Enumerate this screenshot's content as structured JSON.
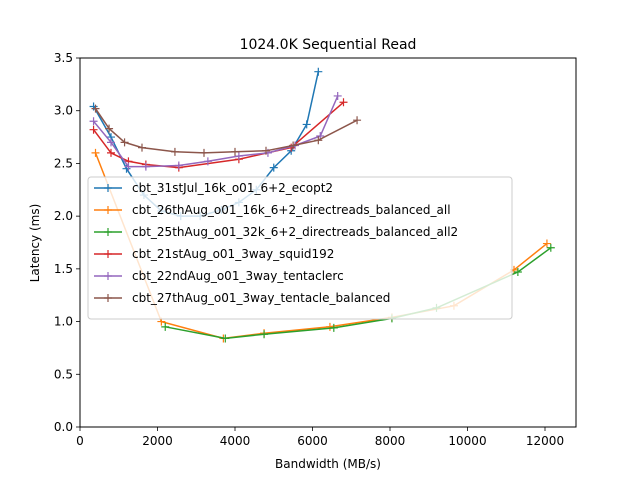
{
  "chart_data": {
    "type": "line",
    "title": "1024.0K  Sequential Read",
    "xlabel": "Bandwidth (MB/s)",
    "ylabel": "Latency (ms)",
    "xlim": [
      0,
      12800
    ],
    "ylim": [
      0,
      3.5
    ],
    "xticks": [
      0,
      2000,
      4000,
      6000,
      8000,
      10000,
      12000
    ],
    "yticks": [
      0.0,
      0.5,
      1.0,
      1.5,
      2.0,
      2.5,
      3.0,
      3.5
    ],
    "grid": false,
    "legend_position": "center-left",
    "series": [
      {
        "name": "cbt_31stJul_16k_o01_6+2_ecopt2",
        "color": "#1f77b4",
        "x": [
          350,
          800,
          1200,
          1650,
          2100,
          2600,
          3100,
          3650,
          4100,
          4550,
          5000,
          5450,
          5850,
          6150
        ],
        "y": [
          3.04,
          2.75,
          2.45,
          2.2,
          2.05,
          2.0,
          2.0,
          2.06,
          2.13,
          2.25,
          2.46,
          2.62,
          2.87,
          3.37
        ]
      },
      {
        "name": "cbt_26thAug_o01_16k_6+2_directreads_balanced_all",
        "color": "#ff7f0e",
        "x": [
          400,
          2100,
          3700,
          4750,
          6450,
          8050,
          9650,
          11200,
          12050
        ],
        "y": [
          2.6,
          1.0,
          0.84,
          0.89,
          0.95,
          1.04,
          1.15,
          1.49,
          1.74
        ]
      },
      {
        "name": "cbt_25thAug_o01_32k_6+2_directreads_balanced_all2",
        "color": "#2ca02c",
        "x": [
          2200,
          3750,
          4750,
          6550,
          8050,
          9200,
          11300,
          12150
        ],
        "y": [
          0.95,
          0.84,
          0.88,
          0.94,
          1.03,
          1.13,
          1.47,
          1.7
        ]
      },
      {
        "name": "cbt_21stAug_o01_3way_squid192",
        "color": "#d62728",
        "x": [
          350,
          800,
          1250,
          1700,
          2550,
          4100,
          5450,
          6800
        ],
        "y": [
          2.82,
          2.6,
          2.52,
          2.49,
          2.46,
          2.54,
          2.65,
          3.08
        ]
      },
      {
        "name": "cbt_22ndAug_o01_3way_tentaclerc",
        "color": "#9467bd",
        "x": [
          350,
          800,
          1250,
          1700,
          2550,
          3300,
          4100,
          4850,
          5550,
          6200,
          6650
        ],
        "y": [
          2.9,
          2.7,
          2.47,
          2.47,
          2.48,
          2.52,
          2.57,
          2.6,
          2.67,
          2.76,
          3.14
        ]
      },
      {
        "name": "cbt_27thAug_o01_3way_tentacle_balanced",
        "color": "#8c564b",
        "x": [
          400,
          750,
          1150,
          1600,
          2450,
          3200,
          4000,
          4800,
          5500,
          6150,
          7150
        ],
        "y": [
          3.02,
          2.83,
          2.7,
          2.65,
          2.61,
          2.6,
          2.61,
          2.62,
          2.67,
          2.72,
          2.91
        ]
      }
    ]
  }
}
